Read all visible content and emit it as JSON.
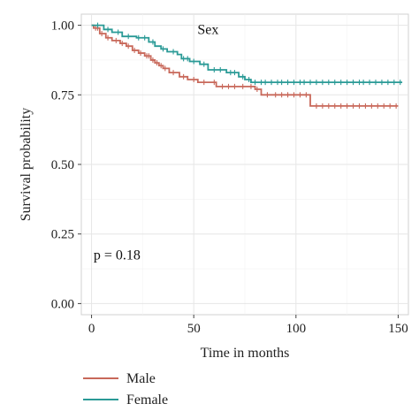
{
  "chart_data": {
    "type": "line",
    "title": "",
    "xlabel": "Time in months",
    "ylabel": "Survival probability",
    "xlim": [
      -5,
      155
    ],
    "ylim": [
      -0.04,
      1.04
    ],
    "xticks": [
      0,
      50,
      100,
      150
    ],
    "yticks": [
      0.0,
      0.25,
      0.5,
      0.75,
      1.0
    ],
    "ytick_labels": [
      "0.00",
      "0.25",
      "0.50",
      "0.75",
      "1.00"
    ],
    "grid": true,
    "legend_position": "bottom-left",
    "annotations": [
      {
        "text": "Sex",
        "x": 57,
        "y": 0.985
      },
      {
        "text": "p = 0.18",
        "x": 1,
        "y": 0.175
      }
    ],
    "series": [
      {
        "name": "Male",
        "color": "#c8685a",
        "steps": [
          [
            0,
            1.0
          ],
          [
            1,
            0.99
          ],
          [
            4,
            0.97
          ],
          [
            7,
            0.955
          ],
          [
            10,
            0.945
          ],
          [
            14,
            0.935
          ],
          [
            17,
            0.925
          ],
          [
            20,
            0.91
          ],
          [
            23,
            0.9
          ],
          [
            26,
            0.89
          ],
          [
            29,
            0.875
          ],
          [
            31,
            0.865
          ],
          [
            33,
            0.855
          ],
          [
            35,
            0.845
          ],
          [
            38,
            0.83
          ],
          [
            43,
            0.815
          ],
          [
            47,
            0.805
          ],
          [
            52,
            0.795
          ],
          [
            61,
            0.78
          ],
          [
            80,
            0.77
          ],
          [
            83,
            0.75
          ],
          [
            107,
            0.71
          ],
          [
            150,
            0.71
          ]
        ],
        "censor_x": [
          2,
          3,
          5,
          8,
          12,
          15,
          18,
          21,
          24,
          27,
          28,
          30,
          32,
          34,
          36,
          40,
          45,
          50,
          55,
          60,
          64,
          67,
          70,
          74,
          78,
          81,
          86,
          90,
          93,
          96,
          99,
          102,
          105,
          110,
          113,
          116,
          119,
          122,
          125,
          128,
          131,
          134,
          137,
          140,
          143,
          146,
          149
        ]
      },
      {
        "name": "Female",
        "color": "#2a9a96",
        "steps": [
          [
            0,
            1.0
          ],
          [
            6,
            0.985
          ],
          [
            10,
            0.975
          ],
          [
            15,
            0.96
          ],
          [
            22,
            0.955
          ],
          [
            28,
            0.94
          ],
          [
            31,
            0.925
          ],
          [
            34,
            0.915
          ],
          [
            37,
            0.905
          ],
          [
            42,
            0.895
          ],
          [
            44,
            0.88
          ],
          [
            48,
            0.87
          ],
          [
            53,
            0.86
          ],
          [
            57,
            0.84
          ],
          [
            66,
            0.83
          ],
          [
            72,
            0.815
          ],
          [
            75,
            0.805
          ],
          [
            78,
            0.795
          ],
          [
            152,
            0.795
          ]
        ],
        "censor_x": [
          3,
          8,
          13,
          18,
          23,
          26,
          30,
          35,
          40,
          45,
          47,
          50,
          55,
          60,
          63,
          68,
          70,
          74,
          77,
          80,
          83,
          85,
          88,
          91,
          93,
          96,
          99,
          102,
          104,
          107,
          110,
          113,
          116,
          119,
          122,
          125,
          128,
          131,
          133,
          136,
          139,
          142,
          145,
          148,
          151
        ]
      }
    ]
  }
}
